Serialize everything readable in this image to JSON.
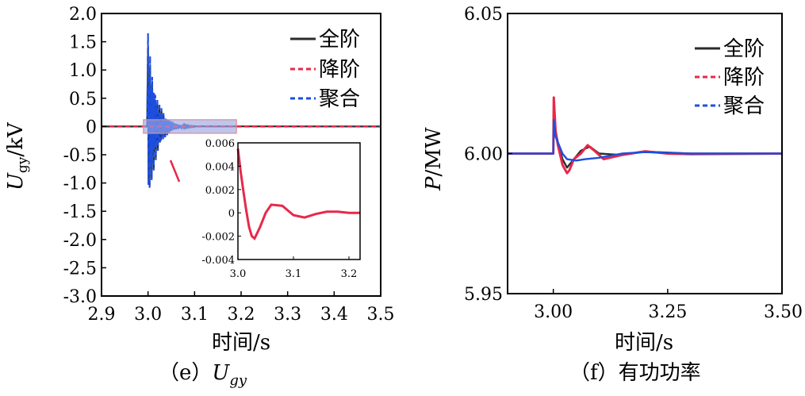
{
  "chart_data": [
    {
      "type": "line",
      "caption_prefix": "（e）",
      "caption_var": "U",
      "caption_sub": "gy",
      "ylabel_var": "U",
      "ylabel_sub": "gy",
      "ylabel_unit": "/kV",
      "xlabel": "时间/s",
      "xlim": [
        2.9,
        3.5
      ],
      "ylim": [
        -3.0,
        2.0
      ],
      "xticks": [
        "2.9",
        "3.0",
        "3.1",
        "3.2",
        "3.3",
        "3.4",
        "3.5"
      ],
      "yticks": [
        "2.0",
        "1.5",
        "1.0",
        "0.5",
        "0",
        "-0.5",
        "-1.0",
        "-1.5",
        "-2.0",
        "-2.5",
        "-3.0"
      ],
      "legend": [
        "全阶",
        "降阶",
        "聚合"
      ],
      "legend_position": "top-right",
      "series": [
        {
          "name": "全阶",
          "x": [
            2.9,
            2.999,
            3.0,
            3.002,
            3.004,
            3.006,
            3.008,
            3.01,
            3.015,
            3.02,
            3.03,
            3.05,
            3.08,
            3.1,
            3.5
          ],
          "y": [
            0,
            0,
            1.1,
            -1.2,
            1.4,
            -1.5,
            1.0,
            -0.9,
            0.6,
            -0.5,
            0.3,
            0.1,
            0.03,
            0,
            0
          ]
        },
        {
          "name": "降阶",
          "x": [
            2.9,
            3.0,
            3.2,
            3.5
          ],
          "y": [
            0,
            0,
            0,
            0
          ]
        },
        {
          "name": "聚合",
          "x": [
            2.9,
            2.999,
            3.0,
            3.002,
            3.004,
            3.006,
            3.008,
            3.01,
            3.015,
            3.02,
            3.03,
            3.05,
            3.08,
            3.1,
            3.5
          ],
          "y": [
            0,
            0,
            1.65,
            -1.55,
            1.5,
            -1.4,
            1.2,
            -1.0,
            0.7,
            -0.6,
            0.35,
            0.12,
            0.04,
            0,
            0
          ]
        }
      ],
      "inset": {
        "xlim": [
          3.0,
          3.22
        ],
        "ylim": [
          -0.004,
          0.006
        ],
        "xticks": [
          "3.0",
          "3.1",
          "3.2"
        ],
        "yticks": [
          "0.006",
          "0.004",
          "0.002",
          "0",
          "-0.002",
          "-0.004"
        ],
        "series": [
          {
            "name": "降阶",
            "x": [
              3.0,
              3.005,
              3.01,
              3.015,
              3.02,
              3.025,
              3.03,
              3.04,
              3.05,
              3.06,
              3.08,
              3.1,
              3.12,
              3.14,
              3.16,
              3.18,
              3.2,
              3.22
            ],
            "y": [
              0.0055,
              0.0035,
              0.0018,
              0.0002,
              -0.0012,
              -0.002,
              -0.0022,
              -0.0012,
              0.0,
              0.0007,
              0.0006,
              -0.0002,
              -0.0004,
              -0.0001,
              0.0001,
              0.0001,
              0.0,
              0.0
            ]
          }
        ]
      }
    },
    {
      "type": "line",
      "caption": "（f）有功功率",
      "ylabel": "P/MW",
      "ylabel_var": "P",
      "ylabel_unit": "/MW",
      "xlabel": "时间/s",
      "xlim": [
        2.9,
        3.5
      ],
      "ylim": [
        5.95,
        6.05
      ],
      "xticks": [
        "3.00",
        "3.25",
        "3.50"
      ],
      "xtick_values": [
        3.0,
        3.25,
        3.5
      ],
      "yticks": [
        "6.05",
        "6.00",
        "5.95"
      ],
      "ytick_values": [
        6.05,
        6.0,
        5.95
      ],
      "legend": [
        "全阶",
        "降阶",
        "聚合"
      ],
      "legend_position": "top-right",
      "series": [
        {
          "name": "全阶",
          "x": [
            2.9,
            3.0,
            3.001,
            3.005,
            3.01,
            3.02,
            3.03,
            3.04,
            3.06,
            3.08,
            3.1,
            3.15,
            3.2,
            3.3,
            3.5
          ],
          "y": [
            6.0,
            6.0,
            6.018,
            6.008,
            6.004,
            5.998,
            5.995,
            5.997,
            6.001,
            6.0025,
            6.0,
            5.9995,
            6.0007,
            6.0,
            6.0
          ]
        },
        {
          "name": "降阶",
          "x": [
            2.9,
            3.0,
            3.001,
            3.005,
            3.01,
            3.02,
            3.03,
            3.035,
            3.045,
            3.06,
            3.075,
            3.09,
            3.11,
            3.15,
            3.2,
            3.25,
            3.3,
            3.5
          ],
          "y": [
            6.0,
            6.0,
            6.02,
            6.008,
            6.003,
            5.996,
            5.993,
            5.994,
            5.998,
            6.0,
            6.003,
            6.001,
            5.998,
            5.9995,
            6.0008,
            6.0,
            5.9998,
            6.0
          ]
        },
        {
          "name": "聚合",
          "x": [
            2.9,
            3.0,
            3.001,
            3.005,
            3.01,
            3.02,
            3.03,
            3.05,
            3.07,
            3.1,
            3.15,
            3.2,
            3.3,
            3.5
          ],
          "y": [
            6.0,
            6.0,
            6.012,
            6.006,
            6.004,
            6.0,
            5.998,
            5.9975,
            5.998,
            5.9985,
            6.0,
            6.0005,
            6.0,
            6.0
          ]
        }
      ]
    }
  ],
  "colors": {
    "full": "#2b2b2b",
    "reduced": "#e8284a",
    "aggregate": "#1c4fe0",
    "highlight_fill": "#9aa7e6",
    "highlight_stroke": "#e58a8a"
  }
}
